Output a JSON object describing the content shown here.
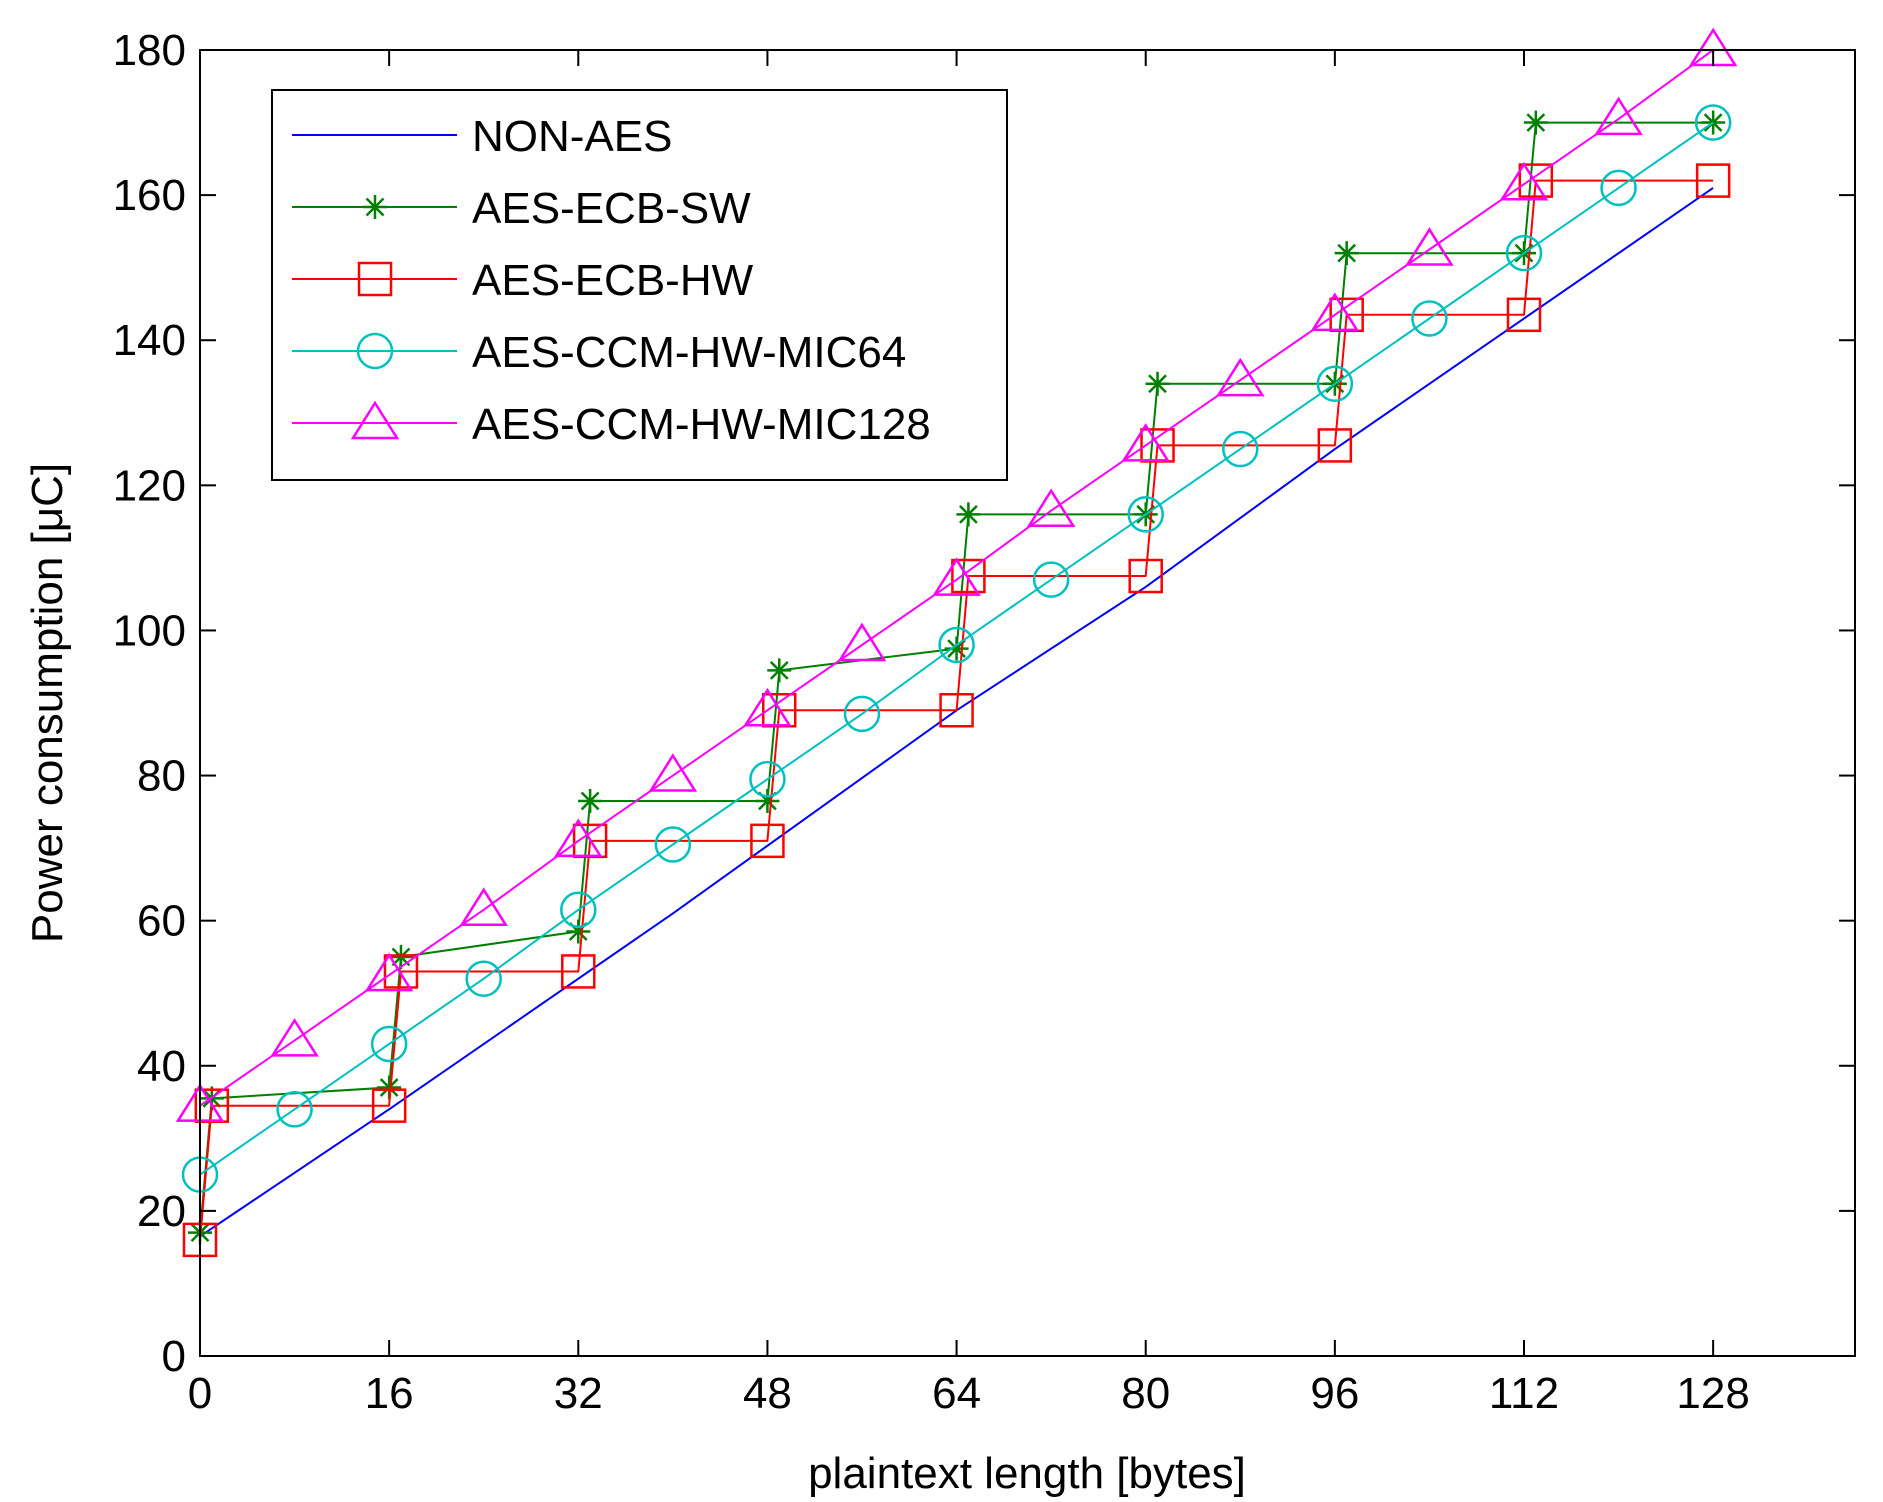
{
  "chart_data": {
    "type": "line",
    "title": "",
    "xlabel": "plaintext length [bytes]",
    "ylabel": "Power consumption [μC]",
    "xlim": [
      0,
      140
    ],
    "ylim": [
      0,
      180
    ],
    "xticks": [
      0,
      16,
      32,
      48,
      64,
      80,
      96,
      112,
      128
    ],
    "yticks": [
      0,
      20,
      40,
      60,
      80,
      100,
      120,
      140,
      160,
      180
    ],
    "xtick_labels": [
      "0",
      "16",
      "32",
      "48",
      "64",
      "80",
      "96",
      "112",
      "128"
    ],
    "ytick_labels": [
      "0",
      "20",
      "40",
      "60",
      "80",
      "100",
      "120",
      "140",
      "160",
      "180"
    ],
    "grid": false,
    "legend_position": "top-left",
    "series": [
      {
        "name": "NON-AES",
        "color": "#0000ff",
        "marker": "none",
        "x": [
          0,
          16,
          40,
          64,
          80,
          96,
          128
        ],
        "y": [
          16.5,
          34,
          61,
          89,
          106,
          125,
          161
        ]
      },
      {
        "name": "AES-ECB-SW",
        "color": "#008000",
        "marker": "star",
        "x": [
          0,
          1,
          16,
          17,
          32,
          33,
          48,
          49,
          64,
          65,
          80,
          81,
          96,
          97,
          112,
          113,
          128
        ],
        "y": [
          17,
          35.5,
          37,
          55,
          58.5,
          76.5,
          76.5,
          94.5,
          97.5,
          116,
          116,
          134,
          134,
          152,
          152,
          170,
          170
        ]
      },
      {
        "name": "AES-ECB-HW",
        "color": "#ff0000",
        "marker": "square",
        "x": [
          0,
          1,
          16,
          17,
          32,
          33,
          48,
          49,
          64,
          65,
          80,
          81,
          96,
          97,
          112,
          113,
          128
        ],
        "y": [
          16,
          34.5,
          34.5,
          53,
          53,
          71,
          71,
          89,
          89,
          107.5,
          107.5,
          125.5,
          125.5,
          143.5,
          143.5,
          162,
          162
        ]
      },
      {
        "name": "AES-CCM-HW-MIC64",
        "color": "#00c0c0",
        "marker": "circle",
        "x": [
          0,
          8,
          16,
          24,
          32,
          40,
          48,
          56,
          64,
          72,
          80,
          88,
          96,
          104,
          112,
          120,
          128
        ],
        "y": [
          25,
          34,
          43,
          52,
          61.5,
          70.5,
          79.5,
          88.5,
          98,
          107,
          116,
          125,
          134,
          143,
          152,
          161,
          170
        ]
      },
      {
        "name": "AES-CCM-HW-MIC128",
        "color": "#ff00ff",
        "marker": "triangle",
        "x": [
          0,
          8,
          16,
          24,
          32,
          40,
          48,
          56,
          64,
          72,
          80,
          88,
          96,
          104,
          112,
          120,
          128
        ],
        "y": [
          34.5,
          43.5,
          52.5,
          61.5,
          71,
          80,
          89,
          98,
          107,
          116.5,
          125.5,
          134.5,
          143.5,
          152.5,
          161.5,
          170.5,
          180
        ]
      }
    ]
  }
}
